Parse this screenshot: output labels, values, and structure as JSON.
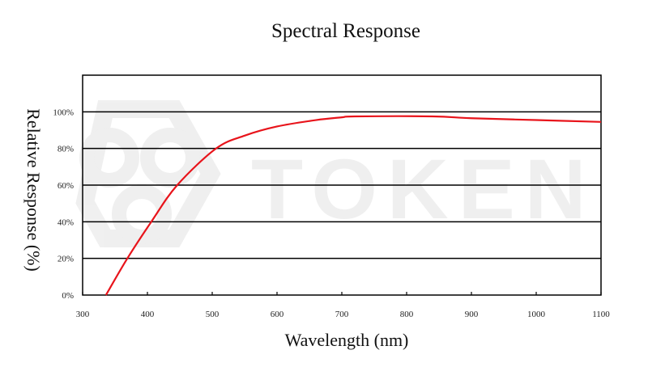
{
  "chart_data": {
    "type": "line",
    "title": "Spectral Response",
    "xlabel": "Wavelength (nm)",
    "ylabel": "Relative Response (%)",
    "xlim": [
      300,
      1100
    ],
    "ylim": [
      0,
      120
    ],
    "xticks": [
      300,
      400,
      500,
      600,
      700,
      800,
      900,
      1000,
      1100
    ],
    "yticks": [
      0,
      20,
      40,
      60,
      80,
      100
    ],
    "ytick_labels": [
      "0%",
      "20%",
      "40%",
      "60%",
      "80%",
      "100%"
    ],
    "grid": "horizontal",
    "series": [
      {
        "color": "#e8141b",
        "x": [
          336,
          369,
          406,
          446,
          506,
          550,
          600,
          660,
          700,
          720,
          840,
          900,
          1000,
          1100
        ],
        "y": [
          0,
          20,
          40,
          60,
          80,
          87,
          92,
          95.5,
          97,
          97.5,
          97.5,
          96.5,
          95.5,
          94.5
        ]
      }
    ],
    "watermark": "TOKEN"
  }
}
